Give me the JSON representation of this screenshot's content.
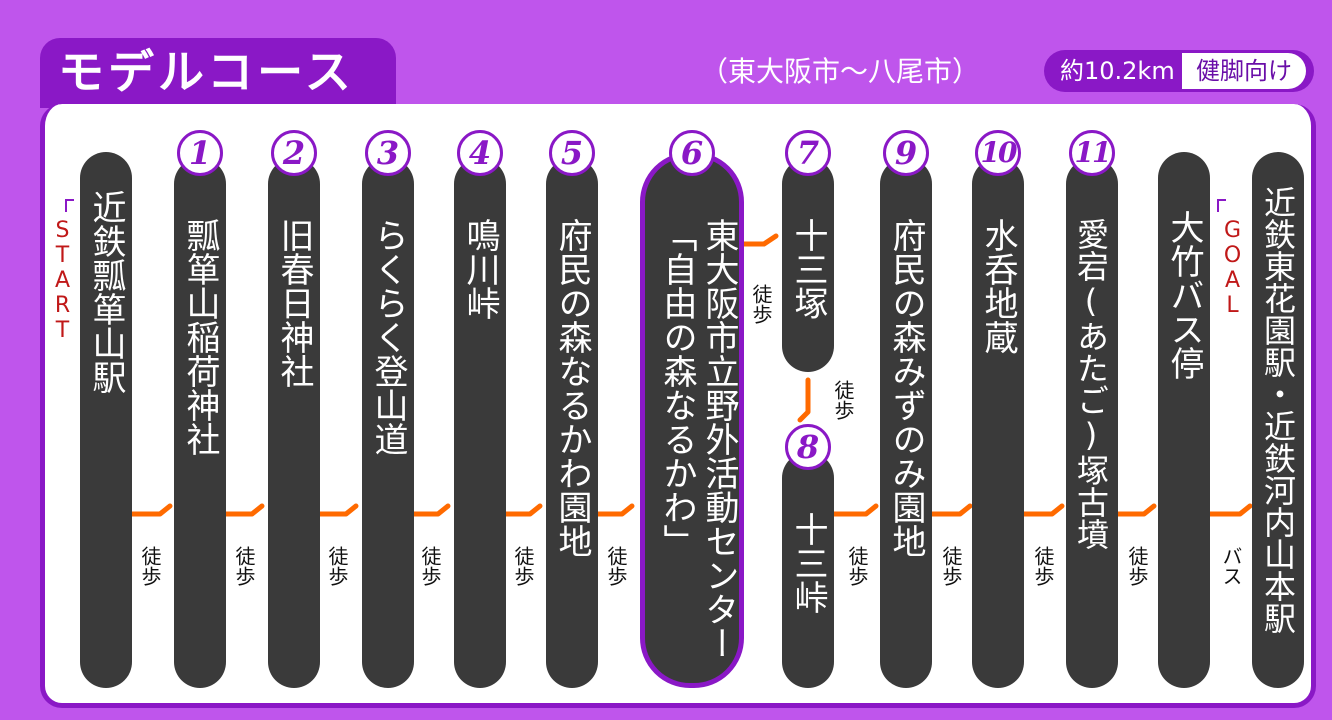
{
  "header": {
    "title": "モデルコース",
    "subtitle": "（東大阪市〜八尾市）",
    "distance": "約10.2km",
    "level": "健脚向け"
  },
  "markers": {
    "start": "START",
    "goal": "GOAL"
  },
  "stops": [
    {
      "num": "",
      "name": "近鉄瓢箪山駅"
    },
    {
      "num": "1",
      "name": "瓢箪山稲荷神社"
    },
    {
      "num": "2",
      "name": "旧春日神社"
    },
    {
      "num": "3",
      "name": "らくらく登山道"
    },
    {
      "num": "4",
      "name": "鳴川峠"
    },
    {
      "num": "5",
      "name": "府民の森なるかわ園地"
    },
    {
      "num": "6",
      "name": "東大阪市立野外活動センター",
      "name2": "「自由の森なるかわ」"
    },
    {
      "num": "7",
      "name": "十三塚"
    },
    {
      "num": "8",
      "name": "十三峠"
    },
    {
      "num": "9",
      "name": "府民の森みずのみ園地"
    },
    {
      "num": "10",
      "name": "水呑地蔵"
    },
    {
      "num": "11",
      "name": "愛宕(あたご)塚古墳"
    },
    {
      "num": "",
      "name": "大竹バス停"
    },
    {
      "num": "",
      "name": "近鉄東花園駅・近鉄河内山本駅"
    }
  ],
  "connectors": [
    "徒歩",
    "徒歩",
    "徒歩",
    "徒歩",
    "徒歩",
    "徒歩",
    "徒歩",
    "徒歩",
    "徒歩",
    "徒歩",
    "徒歩",
    "徒歩",
    "バス"
  ],
  "colors": {
    "background": "#bf55ec",
    "accent": "#8a18c6",
    "pill": "#3a3a3a",
    "arrow": "#ff6a00",
    "marker": "#c01818"
  }
}
